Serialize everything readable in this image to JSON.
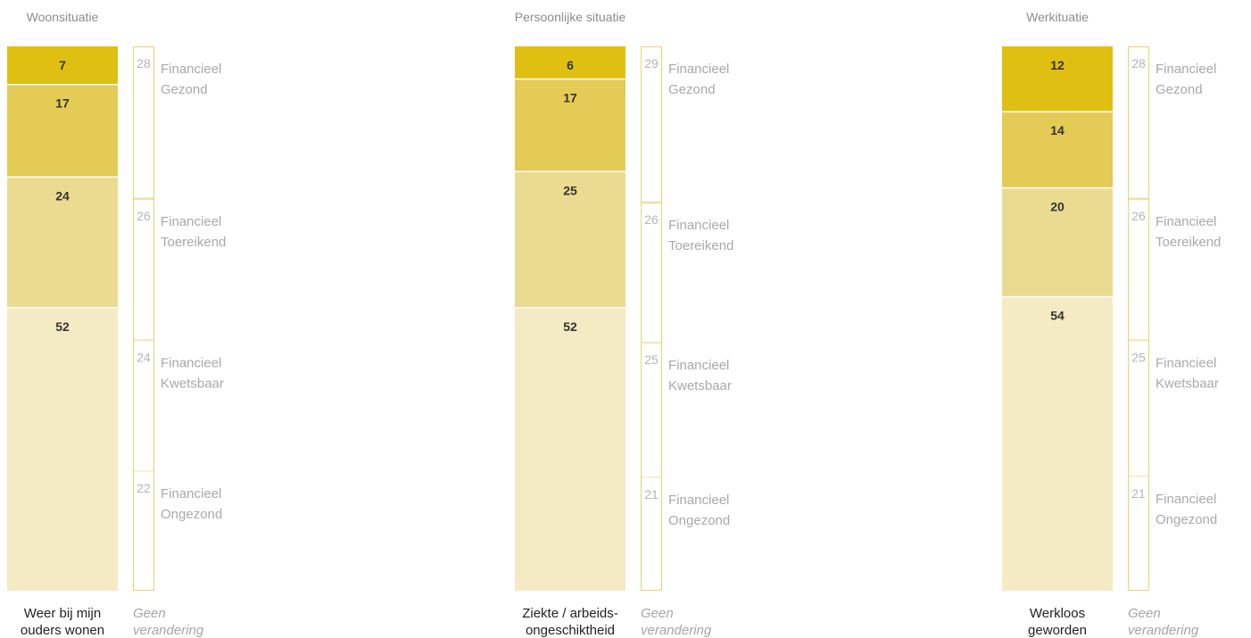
{
  "colors": {
    "seg1": "#dfc012",
    "seg2": "#e4cb55",
    "seg3": "#ebdb90",
    "seg4": "#f4eac3",
    "ref_stroke": "#e9d470",
    "ref_text": "#b5b5b5"
  },
  "chart_data": [
    {
      "type": "bar",
      "title": "Woonsituatie",
      "unit": "%",
      "series": [
        {
          "name": "",
          "category": [
            "Weer bij mijn",
            "ouders wonen"
          ],
          "values": [
            7,
            17,
            24,
            52
          ]
        },
        {
          "name": "",
          "category": [
            "Geen",
            "verandering"
          ],
          "values": [
            28,
            26,
            24,
            22
          ],
          "labels": [
            [
              "Financieel",
              "Gezond"
            ],
            [
              "Financieel",
              "Toereikend"
            ],
            [
              "Financieel",
              "Kwetsbaar"
            ],
            [
              "Financieel",
              "Ongezond"
            ]
          ]
        }
      ]
    },
    {
      "type": "bar",
      "title": "Persoonlijke situatie",
      "unit": "%",
      "series": [
        {
          "name": "",
          "category": [
            "Ziekte / arbeids-",
            "ongeschiktheid"
          ],
          "values": [
            6,
            17,
            25,
            52
          ]
        },
        {
          "name": "",
          "category": [
            "Geen",
            "verandering"
          ],
          "values": [
            29,
            26,
            25,
            21
          ],
          "labels": [
            [
              "Financieel",
              "Gezond"
            ],
            [
              "Financieel",
              "Toereikend"
            ],
            [
              "Financieel",
              "Kwetsbaar"
            ],
            [
              "Financieel",
              "Ongezond"
            ]
          ]
        }
      ]
    },
    {
      "type": "bar",
      "title": "Werkituatie",
      "unit": "%",
      "series": [
        {
          "name": "",
          "category": [
            "Werkloos",
            "geworden"
          ],
          "values": [
            12,
            14,
            20,
            54
          ]
        },
        {
          "name": "",
          "category": [
            "Geen",
            "verandering"
          ],
          "values": [
            28,
            26,
            25,
            21
          ],
          "labels": [
            [
              "Financieel",
              "Gezond"
            ],
            [
              "Financieel",
              "Toereikend"
            ],
            [
              "Financieel",
              "Kwetsbaar"
            ],
            [
              "Financieel",
              "Ongezond"
            ]
          ]
        }
      ]
    }
  ]
}
